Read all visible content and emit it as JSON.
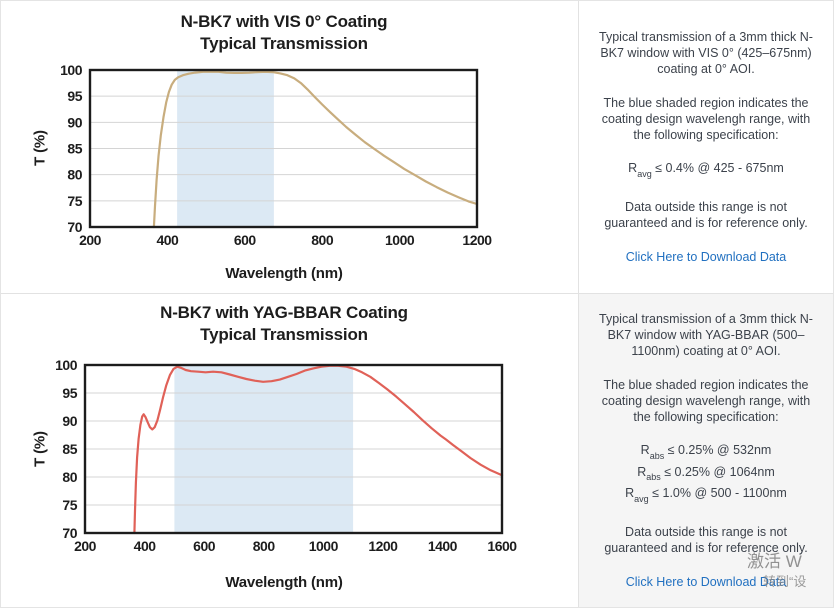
{
  "chart_data": [
    {
      "type": "line",
      "title": "N-BK7 with VIS 0° Coating",
      "subtitle": "Typical Transmission",
      "xlabel": "Wavelength (nm)",
      "ylabel": "T (%)",
      "xlim": [
        200,
        1200
      ],
      "ylim": [
        70,
        100
      ],
      "xticks": [
        200,
        400,
        600,
        800,
        1000,
        1200
      ],
      "yticks": [
        100,
        95,
        90,
        85,
        80,
        75,
        70
      ],
      "grid": true,
      "shaded_region": [
        425,
        675
      ],
      "colors": {
        "line": "#c8ad7e",
        "region": "#dce9f4",
        "grid": "#d4d4d4",
        "frame": "#1c1c1c"
      },
      "points": [
        [
          365,
          70
        ],
        [
          368,
          74
        ],
        [
          372,
          79
        ],
        [
          377,
          83.5
        ],
        [
          383,
          87.5
        ],
        [
          390,
          91
        ],
        [
          397,
          93.8
        ],
        [
          404,
          95.8
        ],
        [
          411,
          97.2
        ],
        [
          419,
          98.1
        ],
        [
          428,
          98.6
        ],
        [
          440,
          99.0
        ],
        [
          455,
          99.3
        ],
        [
          472,
          99.5
        ],
        [
          492,
          99.65
        ],
        [
          512,
          99.7
        ],
        [
          532,
          99.65
        ],
        [
          552,
          99.5
        ],
        [
          572,
          99.45
        ],
        [
          592,
          99.45
        ],
        [
          612,
          99.5
        ],
        [
          632,
          99.6
        ],
        [
          652,
          99.65
        ],
        [
          672,
          99.6
        ],
        [
          692,
          99.35
        ],
        [
          710,
          99.0
        ],
        [
          728,
          98.4
        ],
        [
          745,
          97.5
        ],
        [
          762,
          96.3
        ],
        [
          780,
          94.9
        ],
        [
          800,
          93.4
        ],
        [
          820,
          92.0
        ],
        [
          840,
          90.6
        ],
        [
          862,
          89.1
        ],
        [
          885,
          87.7
        ],
        [
          910,
          86.2
        ],
        [
          935,
          84.9
        ],
        [
          960,
          83.6
        ],
        [
          985,
          82.4
        ],
        [
          1012,
          81.1
        ],
        [
          1040,
          79.9
        ],
        [
          1068,
          78.7
        ],
        [
          1096,
          77.6
        ],
        [
          1124,
          76.6
        ],
        [
          1152,
          75.7
        ],
        [
          1178,
          74.9
        ],
        [
          1200,
          74.4
        ]
      ]
    },
    {
      "type": "line",
      "title": "N-BK7 with YAG-BBAR Coating",
      "subtitle": "Typical Transmission",
      "xlabel": "Wavelength (nm)",
      "ylabel": "T (%)",
      "xlim": [
        200,
        1600
      ],
      "ylim": [
        70,
        100
      ],
      "xticks": [
        200,
        400,
        600,
        800,
        1000,
        1200,
        1400,
        1600
      ],
      "yticks": [
        100,
        95,
        90,
        85,
        80,
        75,
        70
      ],
      "grid": true,
      "shaded_region": [
        500,
        1100
      ],
      "colors": {
        "line": "#e06158",
        "region": "#dce9f4",
        "grid": "#d4d4d4",
        "frame": "#1c1c1c"
      },
      "points": [
        [
          366,
          70
        ],
        [
          368,
          74
        ],
        [
          371,
          79
        ],
        [
          375,
          83.5
        ],
        [
          380,
          86.8
        ],
        [
          386,
          89.3
        ],
        [
          392,
          90.8
        ],
        [
          397,
          91.2
        ],
        [
          403,
          90.7
        ],
        [
          410,
          89.8
        ],
        [
          418,
          88.9
        ],
        [
          426,
          88.5
        ],
        [
          434,
          88.9
        ],
        [
          443,
          90.1
        ],
        [
          452,
          92.0
        ],
        [
          462,
          94.2
        ],
        [
          473,
          96.4
        ],
        [
          485,
          98.2
        ],
        [
          497,
          99.3
        ],
        [
          510,
          99.7
        ],
        [
          522,
          99.5
        ],
        [
          538,
          99.1
        ],
        [
          556,
          98.9
        ],
        [
          580,
          98.8
        ],
        [
          605,
          98.7
        ],
        [
          630,
          98.8
        ],
        [
          658,
          98.7
        ],
        [
          686,
          98.3
        ],
        [
          714,
          97.9
        ],
        [
          742,
          97.5
        ],
        [
          770,
          97.2
        ],
        [
          798,
          97.0
        ],
        [
          826,
          97.1
        ],
        [
          854,
          97.4
        ],
        [
          882,
          97.9
        ],
        [
          910,
          98.4
        ],
        [
          938,
          99.0
        ],
        [
          966,
          99.4
        ],
        [
          994,
          99.7
        ],
        [
          1022,
          99.85
        ],
        [
          1050,
          99.85
        ],
        [
          1078,
          99.7
        ],
        [
          1104,
          99.3
        ],
        [
          1130,
          98.7
        ],
        [
          1158,
          97.9
        ],
        [
          1186,
          96.8
        ],
        [
          1214,
          95.7
        ],
        [
          1244,
          94.4
        ],
        [
          1274,
          93.0
        ],
        [
          1304,
          91.6
        ],
        [
          1334,
          90.1
        ],
        [
          1364,
          88.7
        ],
        [
          1394,
          87.4
        ],
        [
          1412,
          86.7
        ],
        [
          1436,
          85.7
        ],
        [
          1464,
          84.6
        ],
        [
          1494,
          83.4
        ],
        [
          1528,
          82.2
        ],
        [
          1562,
          81.2
        ],
        [
          1600,
          80.3
        ]
      ]
    }
  ],
  "sections": [
    {
      "info": {
        "description": "Typical transmission of a 3mm thick N-BK7 window with VIS 0° (425–675nm) coating at 0° AOI.",
        "region_note": "The blue shaded region indicates the coating design wavelengh range, with the following specification:",
        "specs": [
          {
            "pre": "R",
            "sub": "avg",
            "post": " ≤ 0.4% @ 425 - 675nm"
          }
        ],
        "disclaimer": "Data outside this range is not guaranteed and is for reference only.",
        "link_label": "Click Here to Download Data"
      }
    },
    {
      "info": {
        "description": "Typical transmission of a 3mm thick N-BK7 window with YAG-BBAR (500–1100nm) coating at 0° AOI.",
        "region_note": "The blue shaded region indicates the coating design wavelengh range, with the following specification:",
        "specs": [
          {
            "pre": "R",
            "sub": "abs",
            "post": " ≤ 0.25% @ 532nm"
          },
          {
            "pre": "R",
            "sub": "abs",
            "post": " ≤ 0.25% @ 1064nm"
          },
          {
            "pre": "R",
            "sub": "avg",
            "post": " ≤ 1.0% @ 500 - 1100nm"
          }
        ],
        "disclaimer": "Data outside this range is not guaranteed and is for reference only.",
        "link_label": "Click Here to Download Data"
      }
    }
  ],
  "watermark": {
    "line1": "激活 W",
    "line2": "转到“设"
  }
}
